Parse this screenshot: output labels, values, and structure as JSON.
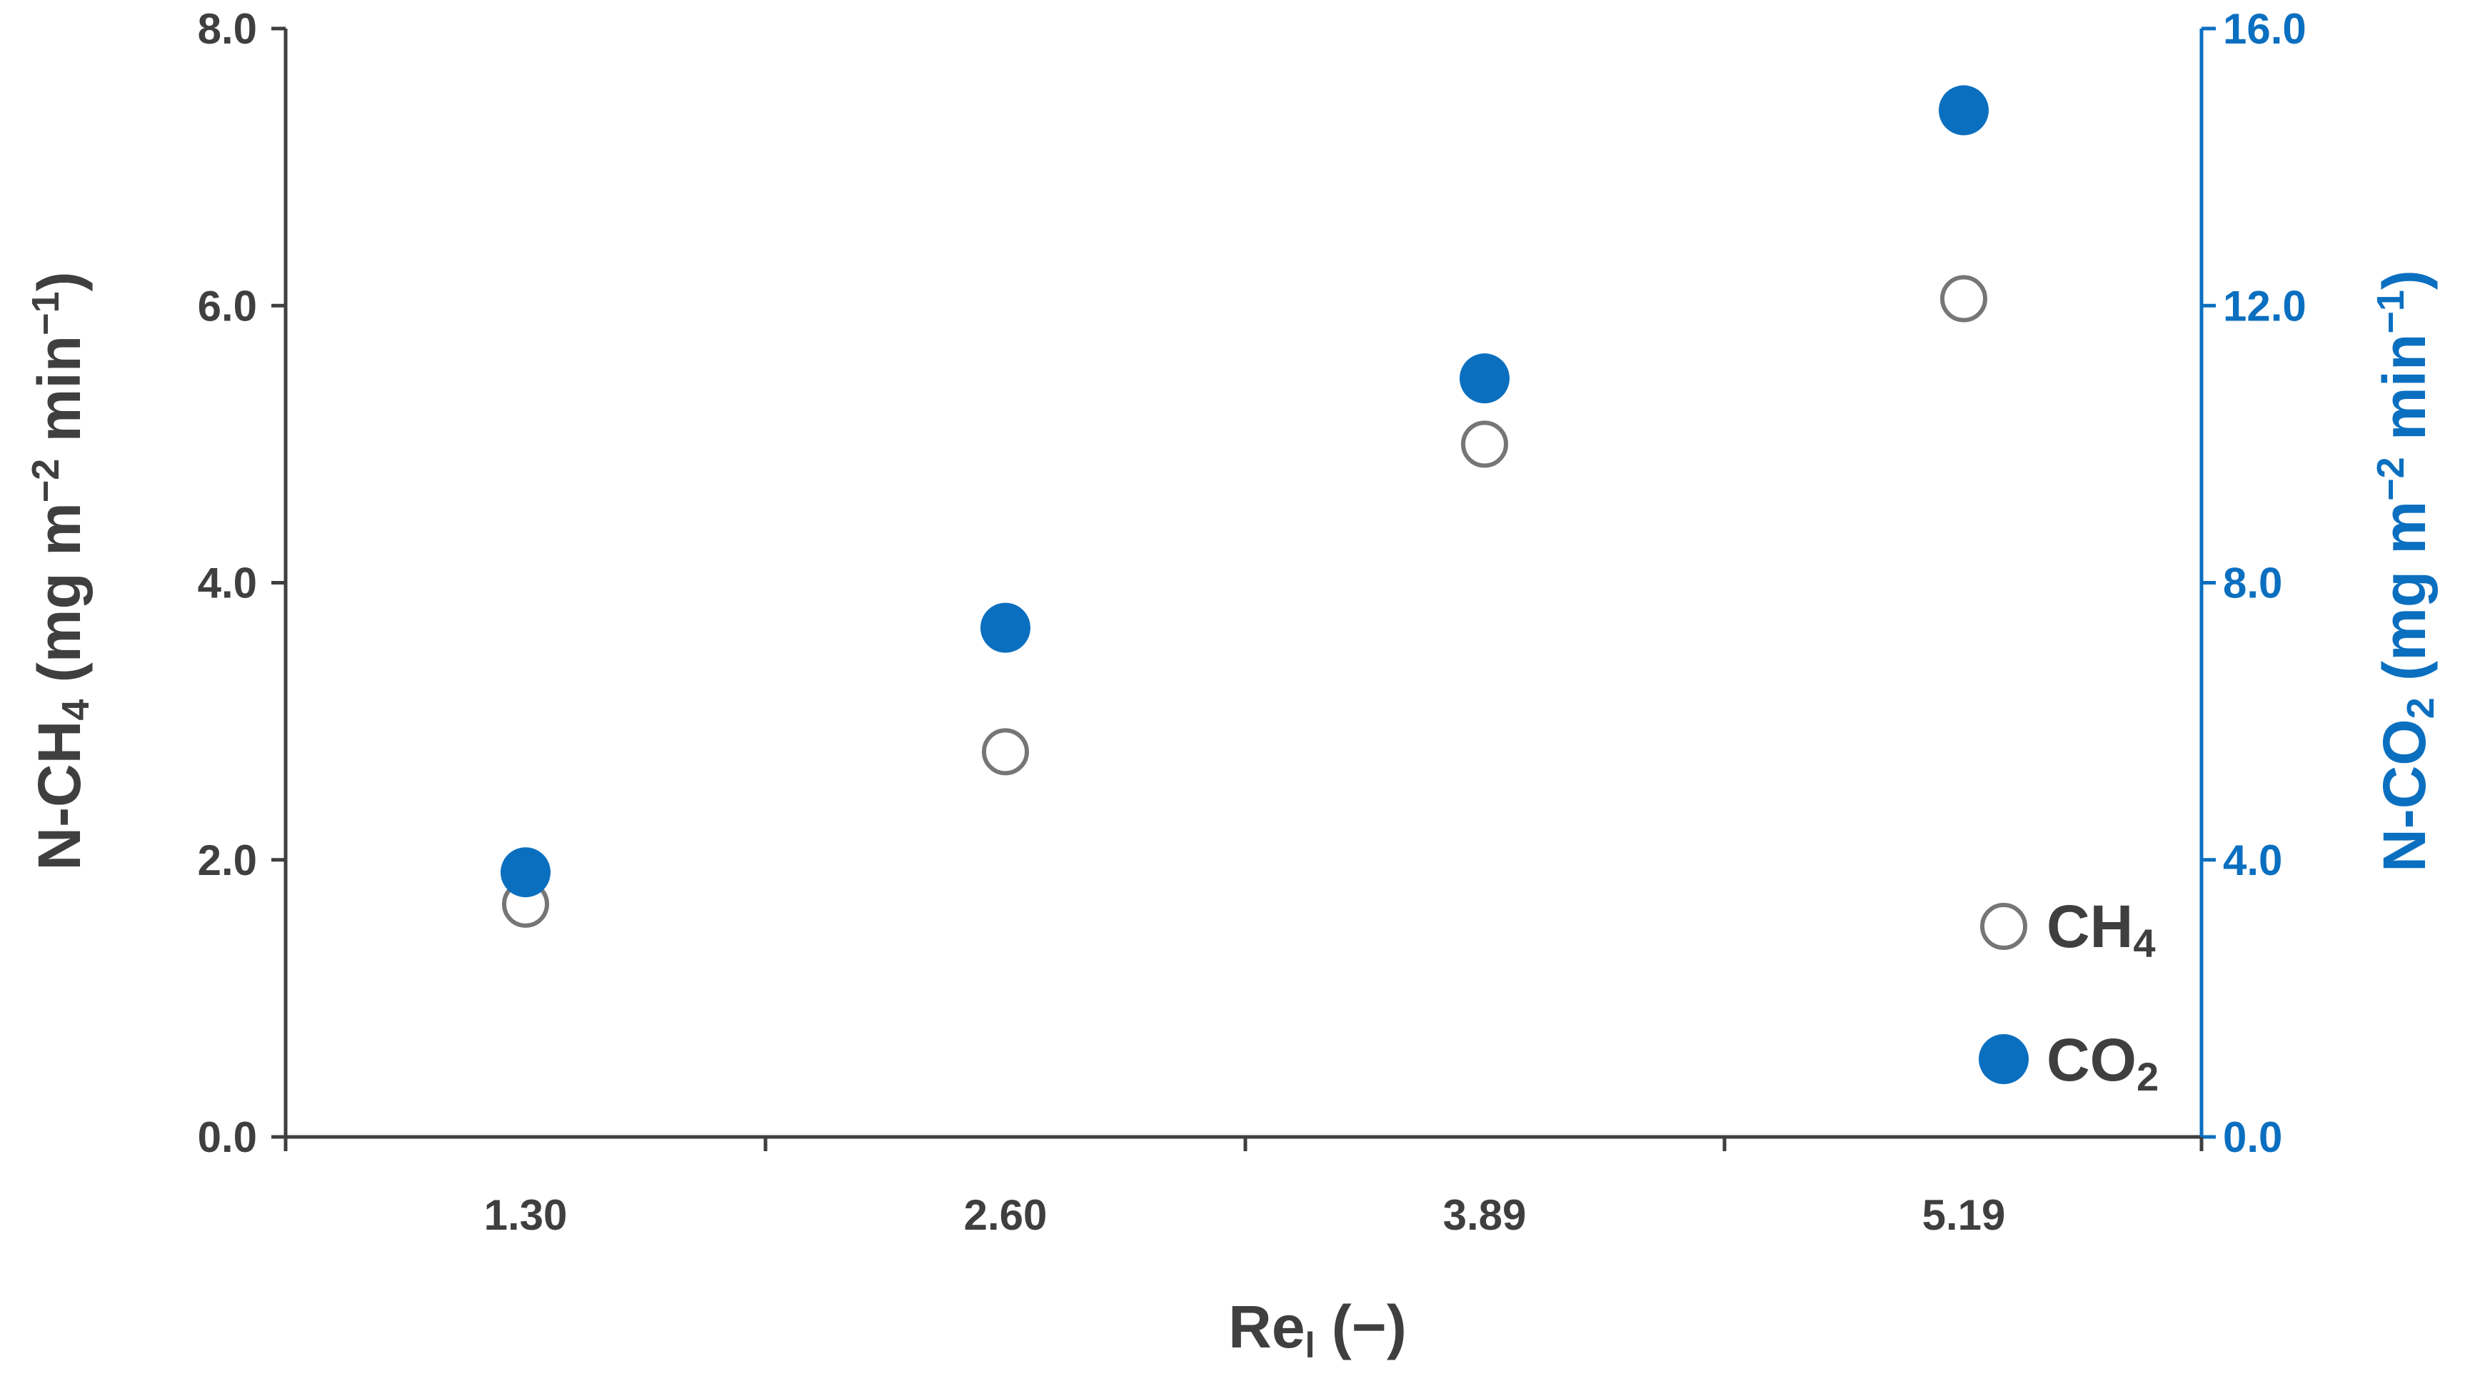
{
  "chart_data": {
    "type": "scatter",
    "x_categories": [
      "1.30",
      "2.60",
      "3.89",
      "5.19"
    ],
    "xlabel": {
      "main": "Re",
      "sub": "l",
      "rest": " (−)"
    },
    "ylabel_left": {
      "pre": "N-CH",
      "sub": "4",
      "post": " (mg m",
      "sup1": "−2",
      "mid": " min",
      "sup2": "−1",
      "end": ")"
    },
    "ylabel_right": {
      "pre": "N-CO",
      "sub": "2",
      "post": " (mg m",
      "sup1": "−2",
      "mid": " min",
      "sup2": "−1",
      "end": ")"
    },
    "ylim_left": [
      0,
      8
    ],
    "ylim_right": [
      0,
      16
    ],
    "yticks_left": [
      "0.0",
      "2.0",
      "4.0",
      "6.0",
      "8.0"
    ],
    "yticks_right": [
      "0.0",
      "4.0",
      "8.0",
      "12.0",
      "16.0"
    ],
    "grid": false,
    "legend_position": "bottom-right",
    "series": [
      {
        "name": "CH4",
        "label_main": "CH",
        "label_sub": "4",
        "axis": "left",
        "marker": "open-circle",
        "color": "#767676",
        "values": [
          1.68,
          2.78,
          5.0,
          6.05
        ]
      },
      {
        "name": "CO2",
        "label_main": "CO",
        "label_sub": "2",
        "axis": "right",
        "marker": "filled-circle",
        "color": "#0b6fc0",
        "values": [
          3.82,
          7.35,
          10.95,
          14.82
        ]
      }
    ]
  }
}
